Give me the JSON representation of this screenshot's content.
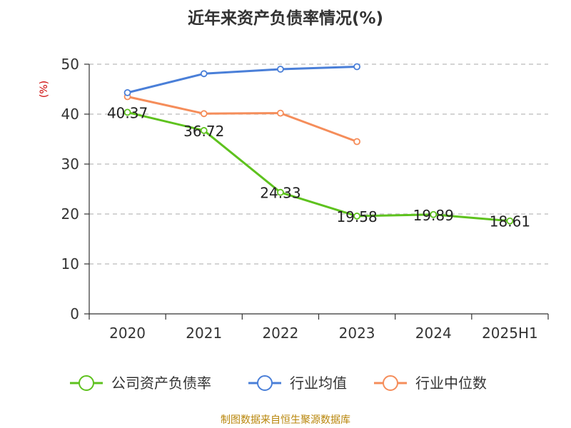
{
  "title": "近年来资产负债率情况(%)",
  "source": "制图数据来自恒生聚源数据库",
  "chart_data": {
    "type": "line",
    "title": "近年来资产负债率情况(%)",
    "ylabel": "(%)",
    "xlabel": "",
    "categories": [
      "2020",
      "2021",
      "2022",
      "2023",
      "2024",
      "2025H1"
    ],
    "ylim": [
      0,
      50
    ],
    "yticks": [
      0,
      10,
      20,
      30,
      40,
      50
    ],
    "grid": true,
    "legend_position": "bottom",
    "series": [
      {
        "name": "公司资产负债率",
        "color": "#5ec21e",
        "values": [
          40.37,
          36.72,
          24.33,
          19.58,
          19.89,
          18.61
        ],
        "labels": [
          "40.37",
          "36.72",
          "24.33",
          "19.58",
          "19.89",
          "18.61"
        ]
      },
      {
        "name": "行业均值",
        "color": "#4a7fd8",
        "values": [
          44.3,
          48.1,
          49.0,
          49.5,
          null,
          null
        ]
      },
      {
        "name": "行业中位数",
        "color": "#f58d5a",
        "values": [
          43.5,
          40.1,
          40.2,
          34.5,
          null,
          null
        ]
      }
    ]
  }
}
